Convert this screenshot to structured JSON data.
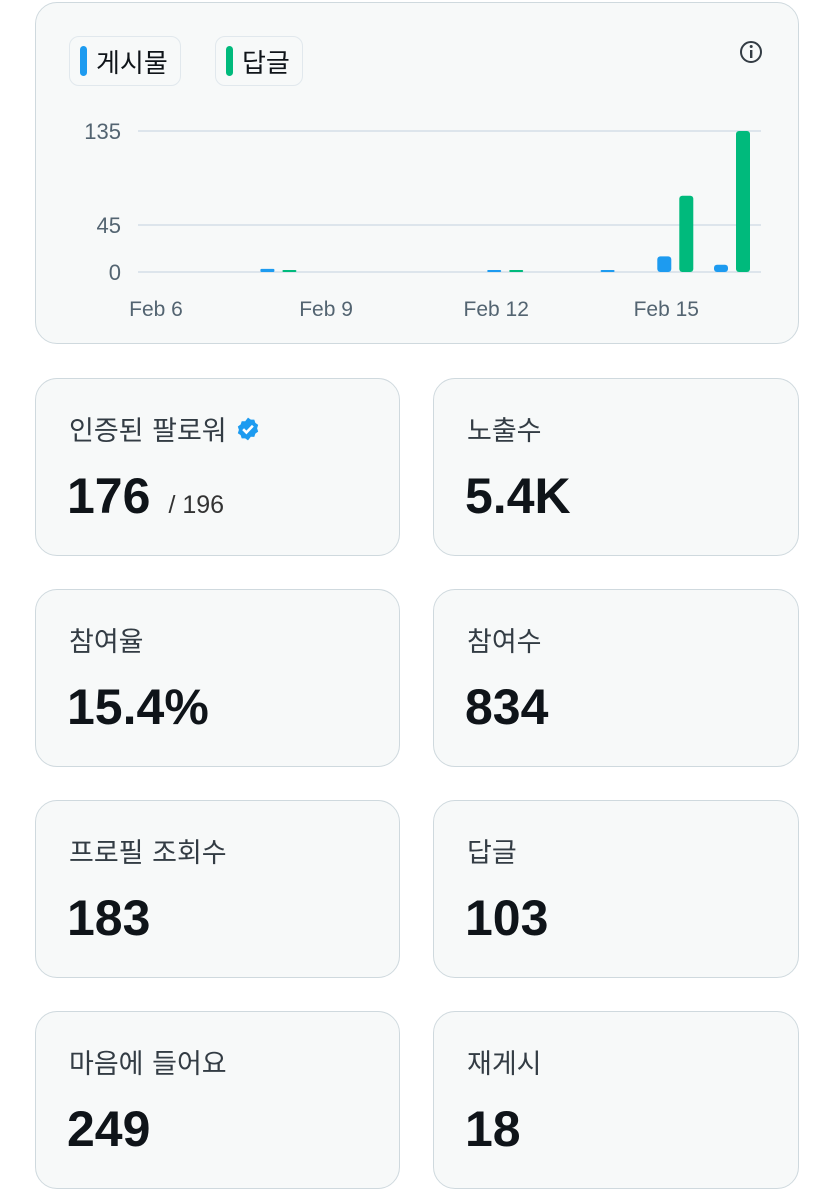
{
  "chart_data": {
    "type": "bar",
    "categories": [
      "Feb 6",
      null,
      null,
      "Feb 9",
      null,
      null,
      "Feb 12",
      null,
      null,
      "Feb 15",
      null
    ],
    "series": [
      {
        "name": "게시물",
        "color": "#1d9bf0",
        "values": [
          0,
          0,
          3,
          0,
          0,
          0,
          1,
          0,
          1,
          15,
          7
        ]
      },
      {
        "name": "답글",
        "color": "#00ba7c",
        "values": [
          0,
          0,
          1,
          0,
          0,
          0,
          1,
          0,
          0,
          73,
          135
        ]
      }
    ],
    "ylim": [
      0,
      135
    ],
    "yticks": [
      0,
      45,
      135
    ],
    "grid": true
  },
  "stats": [
    {
      "label": "인증된 팔로워",
      "value": "176",
      "total": "/ 196"
    },
    {
      "label": "노출수",
      "value": "5.4K"
    },
    {
      "label": "참여율",
      "value": "15.4%"
    },
    {
      "label": "참여수",
      "value": "834"
    },
    {
      "label": "프로필 조회수",
      "value": "183"
    },
    {
      "label": "답글",
      "value": "103"
    },
    {
      "label": "마음에 들어요",
      "value": "249"
    },
    {
      "label": "재게시",
      "value": "18"
    }
  ]
}
